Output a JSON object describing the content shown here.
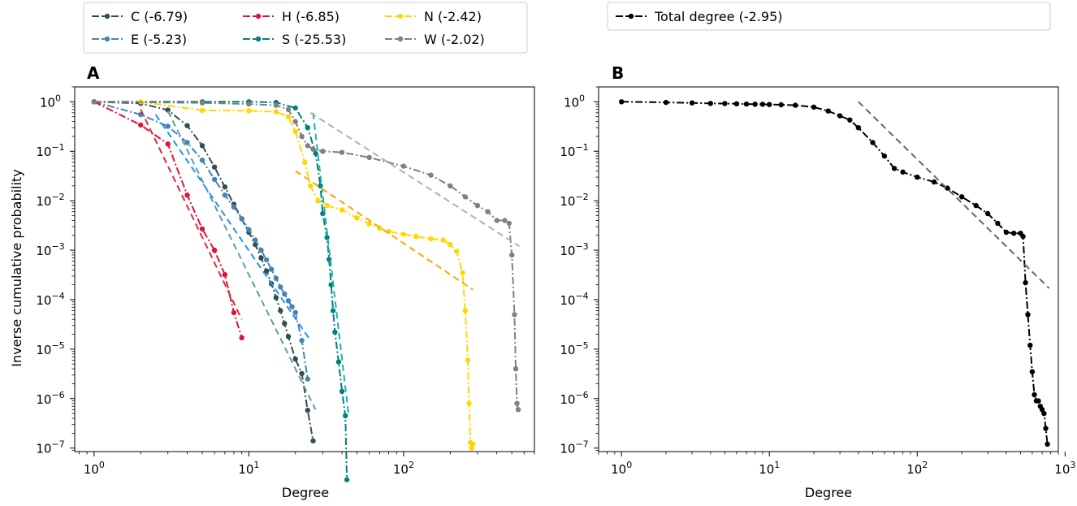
{
  "chart_data": [
    {
      "panel": "A",
      "type": "line",
      "xscale": "log",
      "yscale": "log",
      "xlim": [
        0.75,
        700
      ],
      "ylim": [
        8.5e-08,
        2
      ],
      "xlabel": "Degree",
      "ylabel": "Inverse cumulative probability",
      "xticks": [
        1,
        10,
        100
      ],
      "xtick_labels": [
        "10^0",
        "10^1",
        "10^2"
      ],
      "yticks": [
        1,
        0.1,
        0.01,
        0.001,
        0.0001,
        1e-05,
        1e-06,
        1e-07
      ],
      "ytick_labels": [
        "10^0",
        "10^-1",
        "10^-2",
        "10^-3",
        "10^-4",
        "10^-5",
        "10^-6",
        "10^-7"
      ],
      "legend_position": "above",
      "series": [
        {
          "name": "C (-6.79)",
          "color": "#2f4f4f",
          "fit_color": "#5f9ea0",
          "x": [
            1,
            2,
            3,
            4,
            5,
            6,
            7,
            8,
            9,
            10,
            11,
            12,
            13,
            14,
            15,
            16,
            17,
            18,
            20,
            22,
            24,
            26
          ],
          "y": [
            1,
            0.93,
            0.68,
            0.33,
            0.13,
            0.048,
            0.019,
            0.0085,
            0.0043,
            0.0023,
            0.0013,
            0.0007,
            0.00038,
            0.00021,
            0.00011,
            6e-05,
            3.3e-05,
            1.8e-05,
            6.3e-06,
            3.2e-06,
            5.8e-07,
            1.4e-07
          ],
          "fit": {
            "x": [
              3,
              27
            ],
            "y": [
              0.65,
              6e-07
            ]
          }
        },
        {
          "name": "E (-5.23)",
          "color": "#4682b4",
          "fit_color": "#1e90ff",
          "x": [
            1,
            2,
            3,
            4,
            5,
            6,
            7,
            8,
            9,
            10,
            11,
            12,
            13,
            14,
            15,
            16,
            17,
            18,
            19,
            20,
            22,
            24
          ],
          "y": [
            1,
            0.55,
            0.32,
            0.15,
            0.066,
            0.027,
            0.013,
            0.0075,
            0.0043,
            0.0026,
            0.0016,
            0.001,
            0.00064,
            0.00041,
            0.00027,
            0.00018,
            0.00013,
            9.5e-05,
            7.2e-05,
            5.5e-05,
            1.5e-05,
            2.5e-06
          ],
          "fit": {
            "x": [
              2.5,
              25
            ],
            "y": [
              0.55,
              1.5e-05
            ]
          }
        },
        {
          "name": "H (-6.85)",
          "color": "#dc143c",
          "fit_color": "#e32636",
          "x": [
            1,
            2,
            3,
            4,
            5,
            6,
            7,
            8,
            9
          ],
          "y": [
            1,
            0.34,
            0.14,
            0.013,
            0.0027,
            0.001,
            0.00032,
            5.5e-05,
            1.7e-05
          ],
          "fit": {
            "x": [
              2,
              9
            ],
            "y": [
              0.7,
              4e-05
            ]
          }
        },
        {
          "name": "S (-25.53)",
          "color": "#008080",
          "fit_color": "#20b2aa",
          "x": [
            1,
            5,
            10,
            15,
            20,
            24,
            27,
            29,
            30,
            32,
            33,
            34,
            35,
            36,
            38,
            40,
            42,
            43
          ],
          "y": [
            1,
            1,
            1,
            0.97,
            0.75,
            0.3,
            0.09,
            0.02,
            0.0055,
            0.0018,
            0.00065,
            0.0002,
            6e-05,
            2.2e-05,
            5.5e-06,
            1.4e-06,
            4.5e-07,
            2.3e-08
          ],
          "fit": {
            "x": [
              26,
              44
            ],
            "y": [
              0.6,
              5e-07
            ]
          }
        },
        {
          "name": "N (-2.42)",
          "color": "#ffd700",
          "fit_color": "#ffa500",
          "x": [
            2,
            5,
            10,
            15,
            18,
            20,
            23,
            25,
            28,
            32,
            40,
            50,
            60,
            70,
            80,
            100,
            120,
            150,
            180,
            200,
            220,
            240,
            250,
            260,
            265,
            270,
            275,
            280
          ],
          "y": [
            1,
            0.67,
            0.66,
            0.63,
            0.5,
            0.25,
            0.06,
            0.02,
            0.01,
            0.008,
            0.0065,
            0.0045,
            0.0034,
            0.0028,
            0.0024,
            0.0021,
            0.0019,
            0.0017,
            0.0016,
            0.0013,
            0.00095,
            0.00035,
            6e-05,
            6e-06,
            8e-07,
            1.3e-07,
            1e-07,
            1.2e-07
          ],
          "fit": {
            "x": [
              20,
              280
            ],
            "y": [
              0.04,
              0.00016
            ]
          }
        },
        {
          "name": "W (-2.02)",
          "color": "#808080",
          "fit_color": "#b0b0b0",
          "x": [
            1,
            5,
            10,
            15,
            18,
            20,
            22,
            24,
            26,
            30,
            40,
            60,
            100,
            150,
            200,
            250,
            300,
            350,
            400,
            450,
            480,
            500,
            520,
            530,
            540,
            550
          ],
          "y": [
            1,
            0.95,
            0.9,
            0.85,
            0.7,
            0.4,
            0.2,
            0.13,
            0.11,
            0.1,
            0.095,
            0.075,
            0.05,
            0.033,
            0.02,
            0.012,
            0.008,
            0.006,
            0.004,
            0.004,
            0.0035,
            0.0008,
            5e-05,
            4e-06,
            8e-07,
            6e-07
          ],
          "fit": {
            "x": [
              25,
              560
            ],
            "y": [
              0.6,
              0.0012
            ]
          }
        }
      ]
    },
    {
      "panel": "B",
      "type": "line",
      "xscale": "log",
      "yscale": "log",
      "xlim": [
        0.7,
        900
      ],
      "ylim": [
        8.5e-08,
        2
      ],
      "xlabel": "Degree",
      "ylabel": "",
      "xticks": [
        1,
        10,
        100,
        1000
      ],
      "xtick_labels": [
        "10^0",
        "10^1",
        "10^2",
        "10^3"
      ],
      "yticks": [
        1,
        0.1,
        0.01,
        0.001,
        0.0001,
        1e-05,
        1e-06,
        1e-07
      ],
      "ytick_labels": [
        "10^0",
        "10^-1",
        "10^-2",
        "10^-3",
        "10^-4",
        "10^-5",
        "10^-6",
        "10^-7"
      ],
      "legend_position": "above",
      "series": [
        {
          "name": "Total degree (-2.95)",
          "color": "#000000",
          "fit_color": "#666666",
          "x": [
            1,
            2,
            3,
            4,
            5,
            6,
            7,
            8,
            9,
            10,
            12,
            15,
            20,
            25,
            30,
            35,
            40,
            50,
            60,
            70,
            80,
            100,
            130,
            160,
            200,
            250,
            300,
            350,
            400,
            450,
            500,
            520,
            540,
            560,
            580,
            600,
            620,
            640,
            660,
            680,
            700,
            720,
            740,
            760
          ],
          "y": [
            1,
            0.97,
            0.95,
            0.93,
            0.92,
            0.91,
            0.9,
            0.895,
            0.89,
            0.88,
            0.87,
            0.85,
            0.78,
            0.65,
            0.52,
            0.43,
            0.3,
            0.15,
            0.08,
            0.045,
            0.038,
            0.03,
            0.024,
            0.018,
            0.012,
            0.008,
            0.0055,
            0.0035,
            0.0023,
            0.0022,
            0.0022,
            0.0019,
            0.00022,
            5e-05,
            1.2e-05,
            3.5e-06,
            1.2e-06,
            9e-07,
            9e-07,
            7e-07,
            6e-07,
            5e-07,
            2.5e-07,
            1.2e-07
          ],
          "fit": {
            "x": [
              40,
              780
            ],
            "y": [
              1.0,
              0.00017
            ]
          }
        }
      ]
    }
  ]
}
